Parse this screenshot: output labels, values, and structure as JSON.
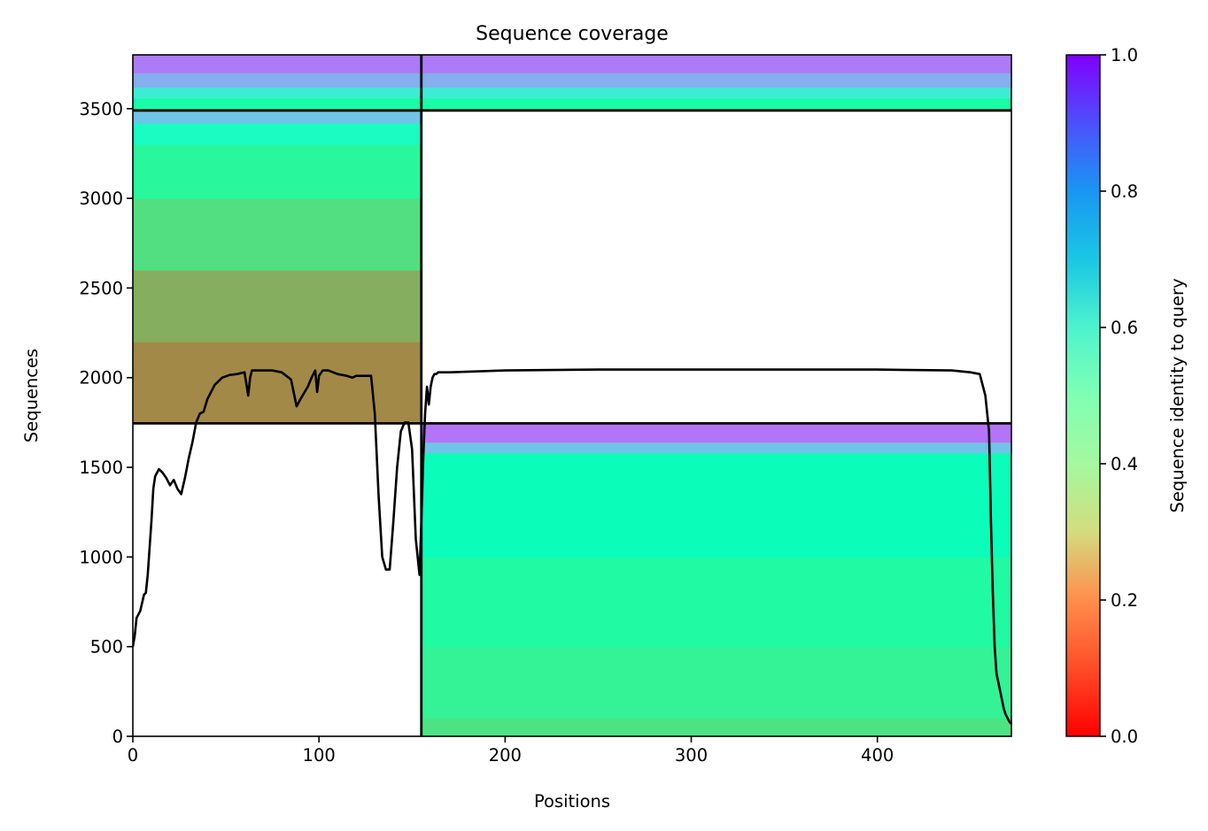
{
  "chart_data": {
    "type": "heatmap",
    "title": "Sequence coverage",
    "xlabel": "Positions",
    "ylabel": "Sequences",
    "xlim": [
      0,
      472
    ],
    "ylim": [
      0,
      3800
    ],
    "x_ticks": [
      0,
      100,
      200,
      300,
      400
    ],
    "y_ticks": [
      0,
      500,
      1000,
      1500,
      2000,
      2500,
      3000,
      3500
    ],
    "colorbar": {
      "label": "Sequence identity to query",
      "min": 0.0,
      "max": 1.0,
      "ticks": [
        "0.0",
        "0.2",
        "0.4",
        "0.6",
        "0.8",
        "1.0"
      ],
      "colormap": "rainbow_r"
    },
    "domain_boundary_positions": [
      155
    ],
    "block_boundary_sequences": [
      1745,
      3490
    ],
    "blocks": [
      {
        "name": "block-bottom-right",
        "x_range": [
          155,
          472
        ],
        "y_range": [
          0,
          1745
        ],
        "identity_bands": [
          {
            "y_from": 0,
            "y_to": 100,
            "identity": 0.35
          },
          {
            "y_from": 100,
            "y_to": 500,
            "identity": 0.4
          },
          {
            "y_from": 500,
            "y_to": 1000,
            "identity": 0.44
          },
          {
            "y_from": 1000,
            "y_to": 1580,
            "identity": 0.52
          },
          {
            "y_from": 1580,
            "y_to": 1640,
            "identity": 0.72
          },
          {
            "y_from": 1640,
            "y_to": 1745,
            "identity": 0.85
          }
        ]
      },
      {
        "name": "block-middle-left",
        "x_range": [
          0,
          155
        ],
        "y_range": [
          1745,
          3490
        ],
        "identity_bands": [
          {
            "y_from": 1745,
            "y_to": 2200,
            "identity": 0.18
          },
          {
            "y_from": 2200,
            "y_to": 2600,
            "identity": 0.24
          },
          {
            "y_from": 2600,
            "y_to": 3000,
            "identity": 0.34
          },
          {
            "y_from": 3000,
            "y_to": 3300,
            "identity": 0.42
          },
          {
            "y_from": 3300,
            "y_to": 3420,
            "identity": 0.55
          },
          {
            "y_from": 3420,
            "y_to": 3490,
            "identity": 0.72
          }
        ]
      },
      {
        "name": "block-top-full",
        "x_range": [
          0,
          472
        ],
        "y_range": [
          3490,
          3800
        ],
        "identity_bands": [
          {
            "y_from": 3490,
            "y_to": 3560,
            "identity": 0.45
          },
          {
            "y_from": 3560,
            "y_to": 3620,
            "identity": 0.62
          },
          {
            "y_from": 3620,
            "y_to": 3700,
            "identity": 0.76
          },
          {
            "y_from": 3700,
            "y_to": 3800,
            "identity": 0.84
          }
        ]
      }
    ],
    "coverage_line": {
      "x": [
        0,
        1,
        2,
        4,
        6,
        7,
        8,
        9,
        10,
        11,
        12,
        14,
        16,
        18,
        20,
        22,
        24,
        26,
        28,
        30,
        32,
        34,
        36,
        38,
        40,
        44,
        48,
        52,
        56,
        60,
        62,
        63,
        64,
        70,
        75,
        80,
        85,
        88,
        90,
        94,
        96,
        98,
        99,
        100,
        102,
        105,
        110,
        115,
        118,
        120,
        125,
        128,
        130,
        132,
        134,
        136,
        138,
        140,
        142,
        144,
        146,
        148,
        150,
        152,
        154,
        155,
        156,
        157,
        158,
        159,
        160,
        161,
        162,
        163,
        164,
        170,
        200,
        250,
        300,
        350,
        400,
        440,
        450,
        455,
        458,
        460,
        461,
        462,
        463,
        464,
        465,
        466,
        467,
        468,
        469,
        470,
        471,
        472
      ],
      "y": [
        500,
        560,
        660,
        700,
        790,
        800,
        900,
        1050,
        1200,
        1380,
        1450,
        1490,
        1470,
        1440,
        1400,
        1430,
        1380,
        1350,
        1440,
        1550,
        1640,
        1750,
        1800,
        1810,
        1880,
        1960,
        2000,
        2015,
        2020,
        2030,
        1900,
        2000,
        2040,
        2040,
        2040,
        2030,
        1990,
        1840,
        1880,
        1950,
        2000,
        2040,
        1920,
        2010,
        2040,
        2040,
        2020,
        2010,
        2000,
        2010,
        2010,
        2010,
        1800,
        1350,
        1000,
        930,
        930,
        1200,
        1500,
        1700,
        1750,
        1750,
        1600,
        1100,
        900,
        1200,
        1550,
        1800,
        1950,
        1850,
        1950,
        2000,
        2020,
        2020,
        2030,
        2030,
        2040,
        2045,
        2045,
        2045,
        2045,
        2040,
        2030,
        2020,
        1900,
        1700,
        1200,
        800,
        500,
        350,
        300,
        250,
        200,
        150,
        120,
        100,
        80,
        70
      ]
    }
  }
}
